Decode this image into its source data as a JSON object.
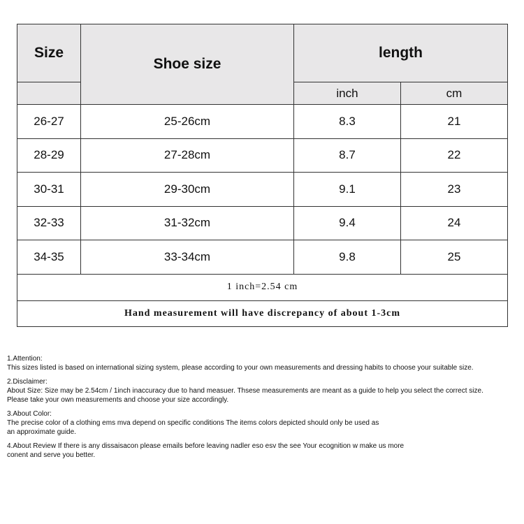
{
  "table": {
    "headers": {
      "size": "Size",
      "shoe_size": "Shoe size",
      "length": "length",
      "inch": "inch",
      "cm": "cm"
    },
    "rows": [
      {
        "size": "26-27",
        "shoe": "25-26cm",
        "inch": "8.3",
        "cm": "21"
      },
      {
        "size": "28-29",
        "shoe": "27-28cm",
        "inch": "8.7",
        "cm": "22"
      },
      {
        "size": "30-31",
        "shoe": "29-30cm",
        "inch": "9.1",
        "cm": "23"
      },
      {
        "size": "32-33",
        "shoe": "31-32cm",
        "inch": "9.4",
        "cm": "24"
      },
      {
        "size": "34-35",
        "shoe": "33-34cm",
        "inch": "9.8",
        "cm": "25"
      }
    ],
    "conversion": "1 inch=2.54 cm",
    "note": "Hand measurement will have discrepancy of about 1-3cm"
  },
  "notes": [
    {
      "title": "1.Attention:",
      "lines": [
        "This sizes listed is based on international sizing system, please according to your own measurements and dressing habits to choose your suitable size."
      ]
    },
    {
      "title": "2.Disclaimer:",
      "lines": [
        "About Size: Size may be 2.54cm / 1inch inaccuracy due to hand measuer. Thsese measurements are meant as a guide to help you select the correct size.",
        "Please take your own measurements and choose your size accordingly."
      ]
    },
    {
      "title": "3.About Color:",
      "lines": [
        "The precise color of a clothing ems mva depend on specific conditions The items colors depicted should only be used as",
        "an approximate guide."
      ]
    },
    {
      "title": "",
      "lines": [
        "4.About Review If there is any dissaisacon please emails before leaving nadler eso esv the see Your ecognition w make us more",
        "conent and serve you better."
      ]
    }
  ]
}
